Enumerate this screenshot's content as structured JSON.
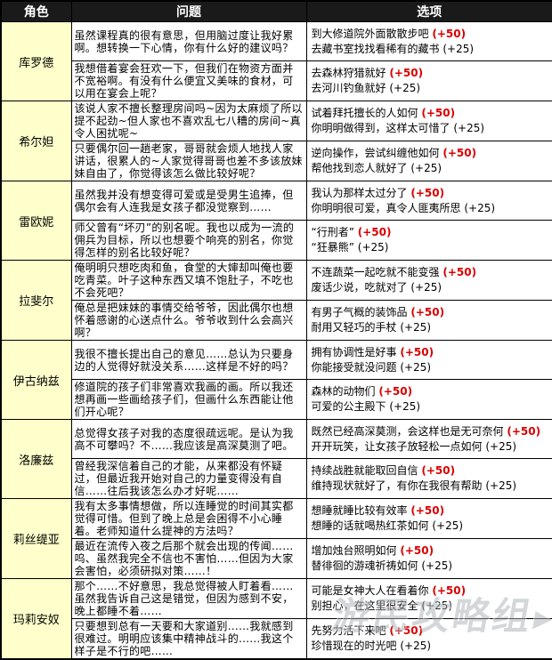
{
  "header": {
    "character": "角色",
    "question": "问题",
    "options": "选项"
  },
  "watermark": {
    "text": "游民攻略组",
    "arrow": "▶"
  },
  "colors": {
    "header_bg": "#1a1a1a",
    "header_text": "#ffffff",
    "character_cell_bg": "#ffffcc",
    "best_bonus_red": "#d90000",
    "border": "#000000",
    "watermark_gray": "#aab0b6"
  },
  "rows": [
    {
      "character": "库罗德",
      "entries": [
        {
          "question": "虽然课程真的很有意思，但用脑过度让我好累啊。想转换一下心情，你有什么好的建议吗？",
          "options": [
            {
              "text": "到大修道院外面散散步吧",
              "bonus": "(+50)"
            },
            {
              "text": "去藏书室找找看稀有的藏书",
              "bonus": "(+25)"
            }
          ]
        },
        {
          "question": "我想借着宴会狂欢一下，但我们在物资方面并不宽裕啊。有没有什么便宜又美味的食材，可以用在宴会上呢？",
          "options": [
            {
              "text": "去森林狩猎就好",
              "bonus": "(+50)"
            },
            {
              "text": "去河川钓鱼就好",
              "bonus": "(+25)"
            }
          ]
        }
      ]
    },
    {
      "character": "希尔妲",
      "entries": [
        {
          "question": "该说人家不擅长整理房间吗~因为太麻烦了所以提不起劲~但人家也不喜欢乱七八糟的房间~真令人困扰呢~",
          "options": [
            {
              "text": "试着拜托擅长的人如何",
              "bonus": "(+50)"
            },
            {
              "text": "你明明做得到，这样太可惜了",
              "bonus": "(+25)"
            }
          ]
        },
        {
          "question": "只要偶尔回一趟老家，哥哥就会烦人地找人家讲话，很累人的~人家觉得哥哥也差不多该放妹妹自由了，你觉得该怎么做比较好呢？",
          "options": [
            {
              "text": "逆向操作，尝试纠缠他如何",
              "bonus": "(+50)"
            },
            {
              "text": "帮他找到恋人就好了",
              "bonus": "(+25)"
            }
          ]
        }
      ]
    },
    {
      "character": "雷欧妮",
      "entries": [
        {
          "question": "虽然我并没有想变得可爱或是受男生追捧，但偶尔会有人连我是女孩子都没觉察到……",
          "options": [
            {
              "text": "我认为那样太过分了",
              "bonus": "(+50)"
            },
            {
              "text": "你明明很可爱，真令人匪夷所思",
              "bonus": "(+25)"
            }
          ]
        },
        {
          "question": "师父曾有“坏刃”的别名呢。我也以成为一流的佣兵为目标，所以也想要个响亮的别名，你觉得怎样的别名比较好呢？",
          "options": [
            {
              "text": "“行刑者”",
              "bonus": "(+50)"
            },
            {
              "text": "“狂暴熊”",
              "bonus": "(+25)"
            }
          ]
        }
      ]
    },
    {
      "character": "拉斐尔",
      "entries": [
        {
          "question": "俺明明只想吃肉和鱼，食堂的大婶却叫俺也要吃青菜。叶子这种东西又填不饱肚子，不吃也不会死吧？",
          "options": [
            {
              "text": "不连蔬菜一起吃就不能变强",
              "bonus": "(+50)"
            },
            {
              "text": "废话少说，吃就对了",
              "bonus": "(+25)"
            }
          ]
        },
        {
          "question": "俺总是把妹妹的事情交给爷爷，因此偶尔也想怀着感谢的心送点什么。爷爷收到什么会高兴啊？",
          "options": [
            {
              "text": "有男子气概的装饰品",
              "bonus": "(+50)"
            },
            {
              "text": "耐用又轻巧的手杖",
              "bonus": "(+25)"
            }
          ]
        }
      ]
    },
    {
      "character": "伊古纳兹",
      "entries": [
        {
          "question": "我很不擅长提出自己的意见……总认为只要身边的人觉得好就没关系……这样是不好的吗？",
          "options": [
            {
              "text": "拥有协调性是好事",
              "bonus": "(+50)"
            },
            {
              "text": "你能接受就没问题",
              "bonus": "(+25)"
            }
          ]
        },
        {
          "question": "修道院的孩子们非常喜欢我画的画。所以我还想再画一些画给孩子们，但画什么东西能让他们开心呢？",
          "options": [
            {
              "text": "森林的动物们",
              "bonus": "(+50)"
            },
            {
              "text": "可爱的公主殿下",
              "bonus": "(+25)"
            }
          ]
        }
      ]
    },
    {
      "character": "洛廉兹",
      "entries": [
        {
          "question": "总觉得女孩子对我的态度很疏远呢。是认为我高不可攀吗？不……我应该是高深莫测了吧。",
          "options": [
            {
              "text": "既然已经高深莫测，会这样也是无可奈何",
              "bonus": "(+50)"
            },
            {
              "text": "开开玩笑，让女孩子放轻松一点如何",
              "bonus": "(+25)"
            }
          ]
        },
        {
          "question": "曾经我深信着自己的才能，从来都没有怀疑过，但最近我开始对自己的力量变得没有自信……往后我该怎么办才好呢……",
          "options": [
            {
              "text": "持续战胜就能取回自信",
              "bonus": "(+50)"
            },
            {
              "text": "维持现状就好了，有你在我很有帮助",
              "bonus": "(+25)"
            }
          ]
        }
      ]
    },
    {
      "character": "莉丝缇亚",
      "entries": [
        {
          "question": "我有太多事情想做，所以连睡觉的时间其实都觉得可惜。但到了晚上总是会困得不小心睡着。老师知道什么提神的方法吗？",
          "options": [
            {
              "text": "想睡就睡比较有效率",
              "bonus": "(+50)"
            },
            {
              "text": "想睡的话就喝热红茶如何",
              "bonus": "(+25)"
            }
          ]
        },
        {
          "question": "最近在流传入夜之后那个就会出现的传闻……呜、虽然我完全不信也不害怕……但因为大家会害怕，必须研拟对策……！",
          "options": [
            {
              "text": "增加烛台照明如何",
              "bonus": "(+50)"
            },
            {
              "text": "替徘徊的游魂祈祷如何",
              "bonus": "(+25)"
            }
          ]
        }
      ]
    },
    {
      "character": "玛莉安奴",
      "entries": [
        {
          "question": "那个……不好意思，我总觉得被人盯着看……虽然我告诉自己这是错觉，但因为感到不安，晚上都睡不着……",
          "options": [
            {
              "text": "可能是女神大人在看着你",
              "bonus": "(+50)"
            },
            {
              "text": "别担心，在这里很安全",
              "bonus": "(+25)"
            }
          ]
        },
        {
          "question": "只要想到总有一天要和大家道别……我就感到很难过。明明应该集中精神战斗的……我这个样子是不行的吧……",
          "options": [
            {
              "text": "先努力活下来吧",
              "bonus": "(+50)"
            },
            {
              "text": "珍惜现在的时光吧",
              "bonus": "(+25)"
            }
          ]
        }
      ]
    }
  ]
}
